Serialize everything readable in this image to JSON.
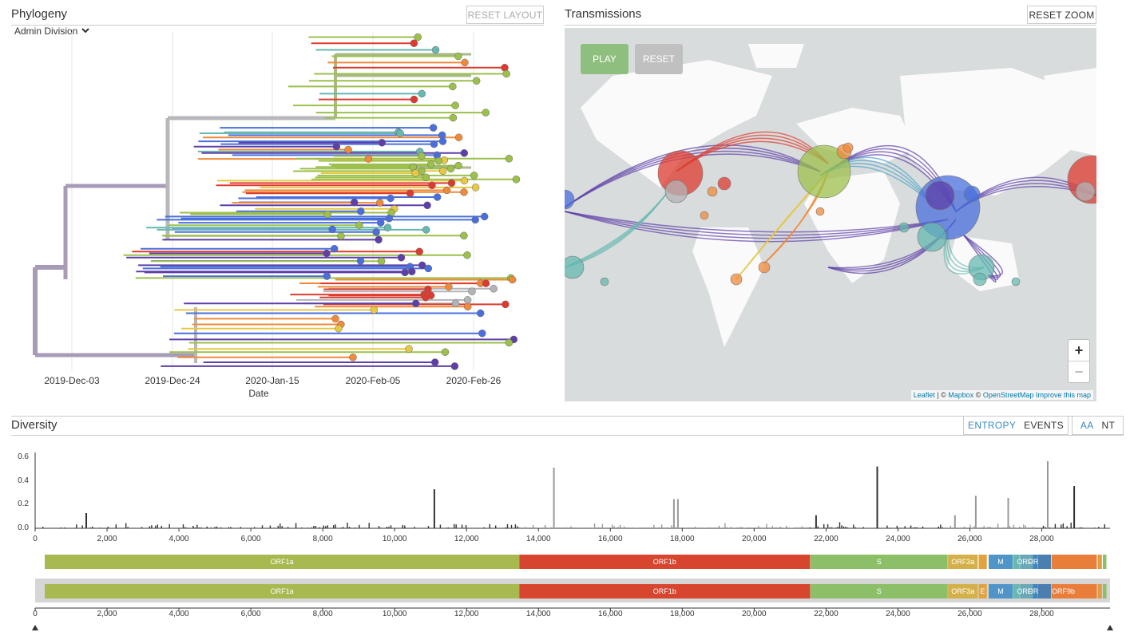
{
  "phylogeny": {
    "title": "Phylogeny",
    "reset_layout": "RESET LAYOUT",
    "color_by": "Admin Division",
    "x_ticks": [
      "2019-Dec-03",
      "2019-Dec-24",
      "2020-Jan-15",
      "2020-Feb-05",
      "2020-Feb-26"
    ],
    "x_label": "Date"
  },
  "transmissions": {
    "title": "Transmissions",
    "reset_zoom": "RESET ZOOM",
    "play": "PLAY",
    "reset": "RESET",
    "zoom_in": "+",
    "zoom_out": "−",
    "attribution": {
      "leaflet": "Leaflet",
      "sep": " | © ",
      "mapbox": "Mapbox",
      "c2": " © ",
      "osm": "OpenStreetMap",
      "improve": "Improve this map"
    }
  },
  "diversity": {
    "title": "Diversity",
    "toggle_entropy": "ENTROPY",
    "toggle_events": "EVENTS",
    "toggle_aa": "AA",
    "toggle_nt": "NT",
    "y_ticks": [
      "0.0",
      "0.2",
      "0.4",
      "0.6"
    ],
    "x_ticks": [
      "0",
      "2,000",
      "4,000",
      "6,000",
      "8,000",
      "10,000",
      "12,000",
      "14,000",
      "16,000",
      "18,000",
      "20,000",
      "22,000",
      "24,000",
      "26,000",
      "28,000"
    ],
    "genes_top": [
      "ORF1a",
      "ORF1b",
      "S",
      "ORF3a",
      "M",
      "ORF7",
      "ORF"
    ],
    "genes_bottom": [
      "ORF1a",
      "ORF1b",
      "S",
      "ORF3a",
      "E",
      "M",
      "ORF7",
      "ORF",
      "ORF9b"
    ]
  },
  "colors": {
    "purple": "#5e3fa8",
    "blue": "#4a6fdc",
    "teal": "#66b8b0",
    "green": "#9cc04b",
    "yellow": "#e6c845",
    "orange": "#ef8a3a",
    "red": "#dd3b2f",
    "grey": "#b4b4b8"
  },
  "chart_data": {
    "type": "bar",
    "title": "Diversity",
    "xlabel": "",
    "ylabel": "",
    "xlim": [
      0,
      29900
    ],
    "ylim": [
      0,
      0.7
    ],
    "peaks": [
      {
        "x": 1400,
        "y": 0.14
      },
      {
        "x": 11083,
        "y": 0.36
      },
      {
        "x": 14408,
        "y": 0.56
      },
      {
        "x": 17747,
        "y": 0.27
      },
      {
        "x": 17858,
        "y": 0.27
      },
      {
        "x": 21700,
        "y": 0.12
      },
      {
        "x": 23403,
        "y": 0.57
      },
      {
        "x": 25563,
        "y": 0.12
      },
      {
        "x": 26144,
        "y": 0.3
      },
      {
        "x": 27046,
        "y": 0.28
      },
      {
        "x": 28144,
        "y": 0.62
      },
      {
        "x": 28881,
        "y": 0.39
      }
    ]
  }
}
